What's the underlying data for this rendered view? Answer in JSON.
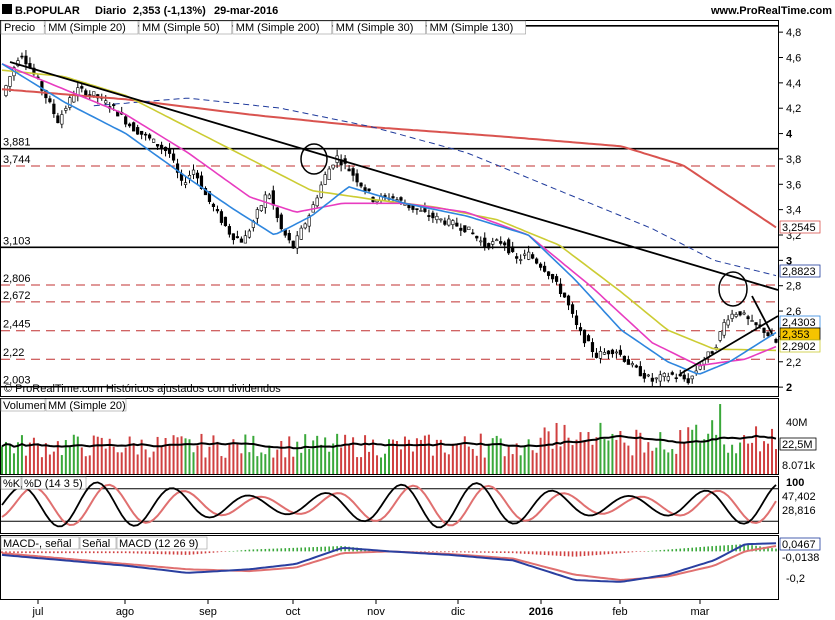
{
  "header": {
    "ticker": "B.POPULAR",
    "period": "Diario",
    "quote": "2,353 (-1,13%)",
    "date": "29-mar-2016",
    "site": "www.ProRealTime.com"
  },
  "price_panel": {
    "legend": [
      "Precio",
      "MM (Simple 20)",
      "MM (Simple 50)",
      "MM (Simple 200)",
      "MM (Simple 30)",
      "MM (Simple 130)"
    ],
    "footer": "© ProRealTime.com  Históricos ajustados con dividendos",
    "yticks": [
      "4,8",
      "4,6",
      "4,4",
      "4,2",
      "4",
      "3,8",
      "3,6",
      "3,4",
      "3,2",
      "3",
      "2,8",
      "2,6",
      "2,4",
      "2,2",
      "2"
    ],
    "level_labels": [
      "3,881",
      "3,744",
      "3,103",
      "2,806",
      "2,672",
      "2,445",
      "2,22",
      "2,003"
    ],
    "right_tags": {
      "ma200": "3,2545",
      "ma130": "2,8823",
      "ma20": "2,4303",
      "close": "2,353",
      "ma50": "2,2902"
    }
  },
  "volume_panel": {
    "legend": [
      "Volumen",
      "MM (Simple 20)"
    ],
    "yticks": [
      "40M"
    ],
    "tags": {
      "ma": "22,5M",
      "last": "8.071k"
    }
  },
  "stoch_panel": {
    "legend": [
      "%K",
      "%D (14 3 5)"
    ],
    "yticks": [
      "100"
    ],
    "tags": {
      "k": "47,402",
      "d": "28,816"
    }
  },
  "macd_panel": {
    "legend": [
      "MACD-, señal",
      "Señal",
      "MACD (12 26 9)"
    ],
    "yticks": [
      "-0,2"
    ],
    "tags": {
      "macd": "0,0467",
      "hist": "-0,0138"
    }
  },
  "xaxis": [
    "jul",
    "ago",
    "sep",
    "oct",
    "nov",
    "dic",
    "2016",
    "feb",
    "mar"
  ],
  "colors": {
    "ma20": "#2e86de",
    "ma50": "#cccc33",
    "ma200": "#d9534f",
    "ma30": "#e83cc0",
    "ma130": "#1f3a9c",
    "up": "#3aa83a",
    "down": "#d04040",
    "tag_close": "#f5c400"
  },
  "chart_data": {
    "type": "line",
    "title": "B.POPULAR Diario",
    "ylim": [
      1.93,
      4.88
    ],
    "x": [
      "jul",
      "ago",
      "sep",
      "oct",
      "nov",
      "dic",
      "2016",
      "feb",
      "mar"
    ],
    "series": [
      {
        "name": "Precio",
        "values": [
          4.45,
          4.2,
          3.65,
          3.75,
          3.45,
          3.3,
          2.65,
          2.1,
          2.35
        ]
      },
      {
        "name": "MM (Simple 20)",
        "values": [
          4.5,
          4.05,
          3.45,
          3.25,
          3.5,
          3.3,
          2.8,
          2.1,
          2.43
        ]
      },
      {
        "name": "MM (Simple 50)",
        "values": [
          4.48,
          4.3,
          3.95,
          3.55,
          3.45,
          3.38,
          3.0,
          2.35,
          2.29
        ]
      },
      {
        "name": "MM (Simple 200)",
        "values": [
          4.33,
          4.22,
          4.12,
          4.05,
          3.99,
          3.95,
          3.88,
          3.62,
          3.25
        ]
      },
      {
        "name": "MM (Simple 30)",
        "values": [
          4.5,
          4.15,
          3.7,
          3.38,
          3.45,
          3.35,
          2.85,
          2.2,
          2.3
        ]
      },
      {
        "name": "MM (Simple 130)",
        "values": [
          4.25,
          4.25,
          4.18,
          4.05,
          3.85,
          3.65,
          3.35,
          3.05,
          2.88
        ]
      }
    ],
    "levels": [
      3.881,
      3.744,
      3.103,
      2.806,
      2.672,
      2.445,
      2.22,
      2.003
    ]
  }
}
